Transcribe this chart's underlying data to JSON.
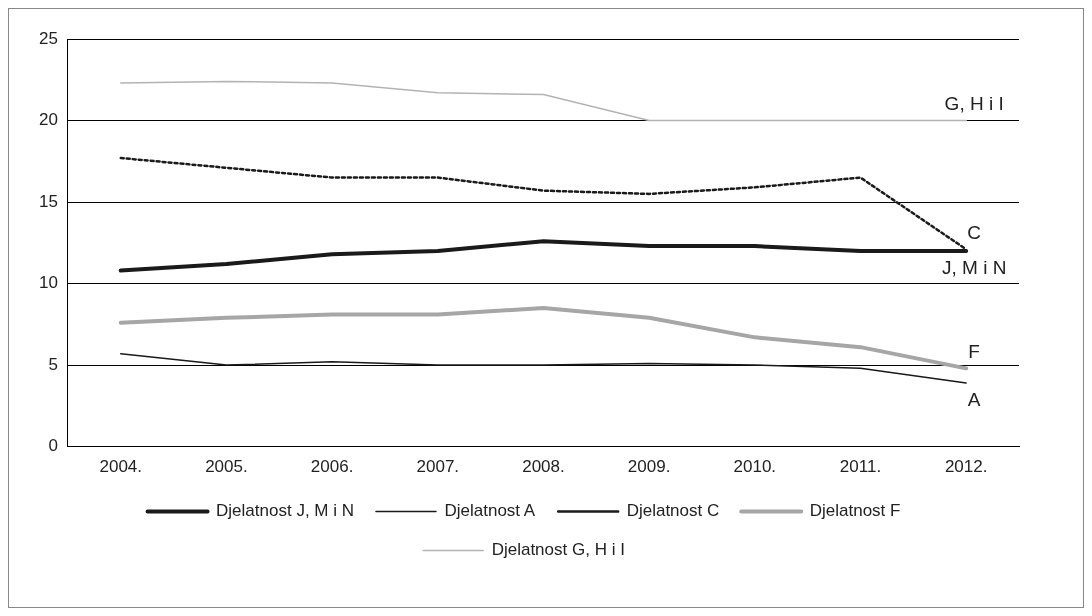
{
  "chart_data": {
    "type": "line",
    "categories": [
      "2004.",
      "2005.",
      "2006.",
      "2007.",
      "2008.",
      "2009.",
      "2010.",
      "2011.",
      "2012."
    ],
    "series": [
      {
        "name": "Djelatnost J, M i N",
        "color": "#1a1a1a",
        "values": [
          10.8,
          11.2,
          11.8,
          12.0,
          12.6,
          12.3,
          12.3,
          12.0,
          12.0
        ]
      },
      {
        "name": "Djelatnost A",
        "color": "#1a1a1a",
        "values": [
          5.7,
          5.0,
          5.2,
          5.0,
          5.0,
          5.1,
          5.0,
          4.8,
          3.9
        ]
      },
      {
        "name": "Djelatnost C",
        "color": "#1a1a1a",
        "line_style": "dotted",
        "values": [
          17.7,
          17.1,
          16.5,
          16.5,
          15.7,
          15.5,
          15.9,
          16.5,
          12.1
        ]
      },
      {
        "name": "Djelatnost F",
        "color": "#a6a6a6",
        "values": [
          7.6,
          7.9,
          8.1,
          8.1,
          8.5,
          7.9,
          6.7,
          6.1,
          4.8
        ]
      },
      {
        "name": "Djelatnost G, H i I",
        "color": "#b3b3b3",
        "values": [
          22.3,
          22.4,
          22.3,
          21.7,
          21.6,
          20.0,
          20.0,
          20.0,
          20.0
        ]
      }
    ],
    "ylim": [
      0,
      25
    ],
    "yticks": [
      0,
      5,
      10,
      15,
      20,
      25
    ],
    "grid": "y",
    "legend": "bottom",
    "marker": "none",
    "line_style": "solid",
    "annotations": [
      {
        "text": "G, H i I",
        "x": "2012.",
        "y": 20.0
      },
      {
        "text": "C",
        "x": "2012.",
        "y": 12.1
      },
      {
        "text": "J, M i N",
        "x": "2012.",
        "y": 12.0
      },
      {
        "text": "F",
        "x": "2012.",
        "y": 4.8
      },
      {
        "text": "A",
        "x": "2012.",
        "y": 3.9
      }
    ]
  }
}
